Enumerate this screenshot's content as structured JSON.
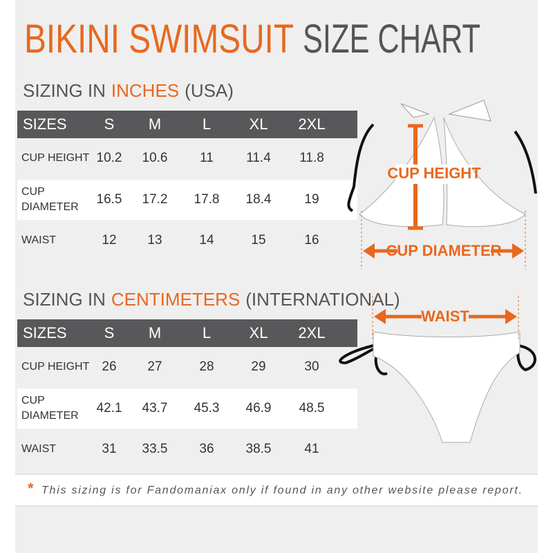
{
  "header": {
    "title_highlight": "BIKINI SWIMSUIT",
    "title_rest": "SIZE CHART"
  },
  "tables": [
    {
      "heading": {
        "prefix": "SIZING IN",
        "unit": "INCHES",
        "suffix": "(USA)"
      },
      "columns": [
        "SIZES",
        "S",
        "M",
        "L",
        "XL",
        "2XL"
      ],
      "rows": [
        {
          "label": [
            "CUP HEIGHT"
          ],
          "cells": [
            "10.2",
            "10.6",
            "11",
            "11.4",
            "11.8"
          ]
        },
        {
          "label": [
            "CUP",
            "DIAMETER"
          ],
          "cells": [
            "16.5",
            "17.2",
            "17.8",
            "18.4",
            "19"
          ]
        },
        {
          "label": [
            "WAIST"
          ],
          "cells": [
            "12",
            "13",
            "14",
            "15",
            "16"
          ]
        }
      ]
    },
    {
      "heading": {
        "prefix": "SIZING IN",
        "unit": "CENTIMETERS",
        "suffix": "(INTERNATIONAL)"
      },
      "columns": [
        "SIZES",
        "S",
        "M",
        "L",
        "XL",
        "2XL"
      ],
      "rows": [
        {
          "label": [
            "CUP HEIGHT"
          ],
          "cells": [
            "26",
            "27",
            "28",
            "29",
            "30"
          ]
        },
        {
          "label": [
            "CUP",
            "DIAMETER"
          ],
          "cells": [
            "42.1",
            "43.7",
            "45.3",
            "46.9",
            "48.5"
          ]
        },
        {
          "label": [
            "WAIST"
          ],
          "cells": [
            "31",
            "33.5",
            "36",
            "38.5",
            "41"
          ]
        }
      ]
    }
  ],
  "diagram": {
    "cup_height": "CUP HEIGHT",
    "cup_diameter": "CUP DIAMETER",
    "waist": "WAIST"
  },
  "footnote": {
    "mark": "*",
    "text": "This sizing is for Fandomaniax only if found in any other website please report."
  }
}
